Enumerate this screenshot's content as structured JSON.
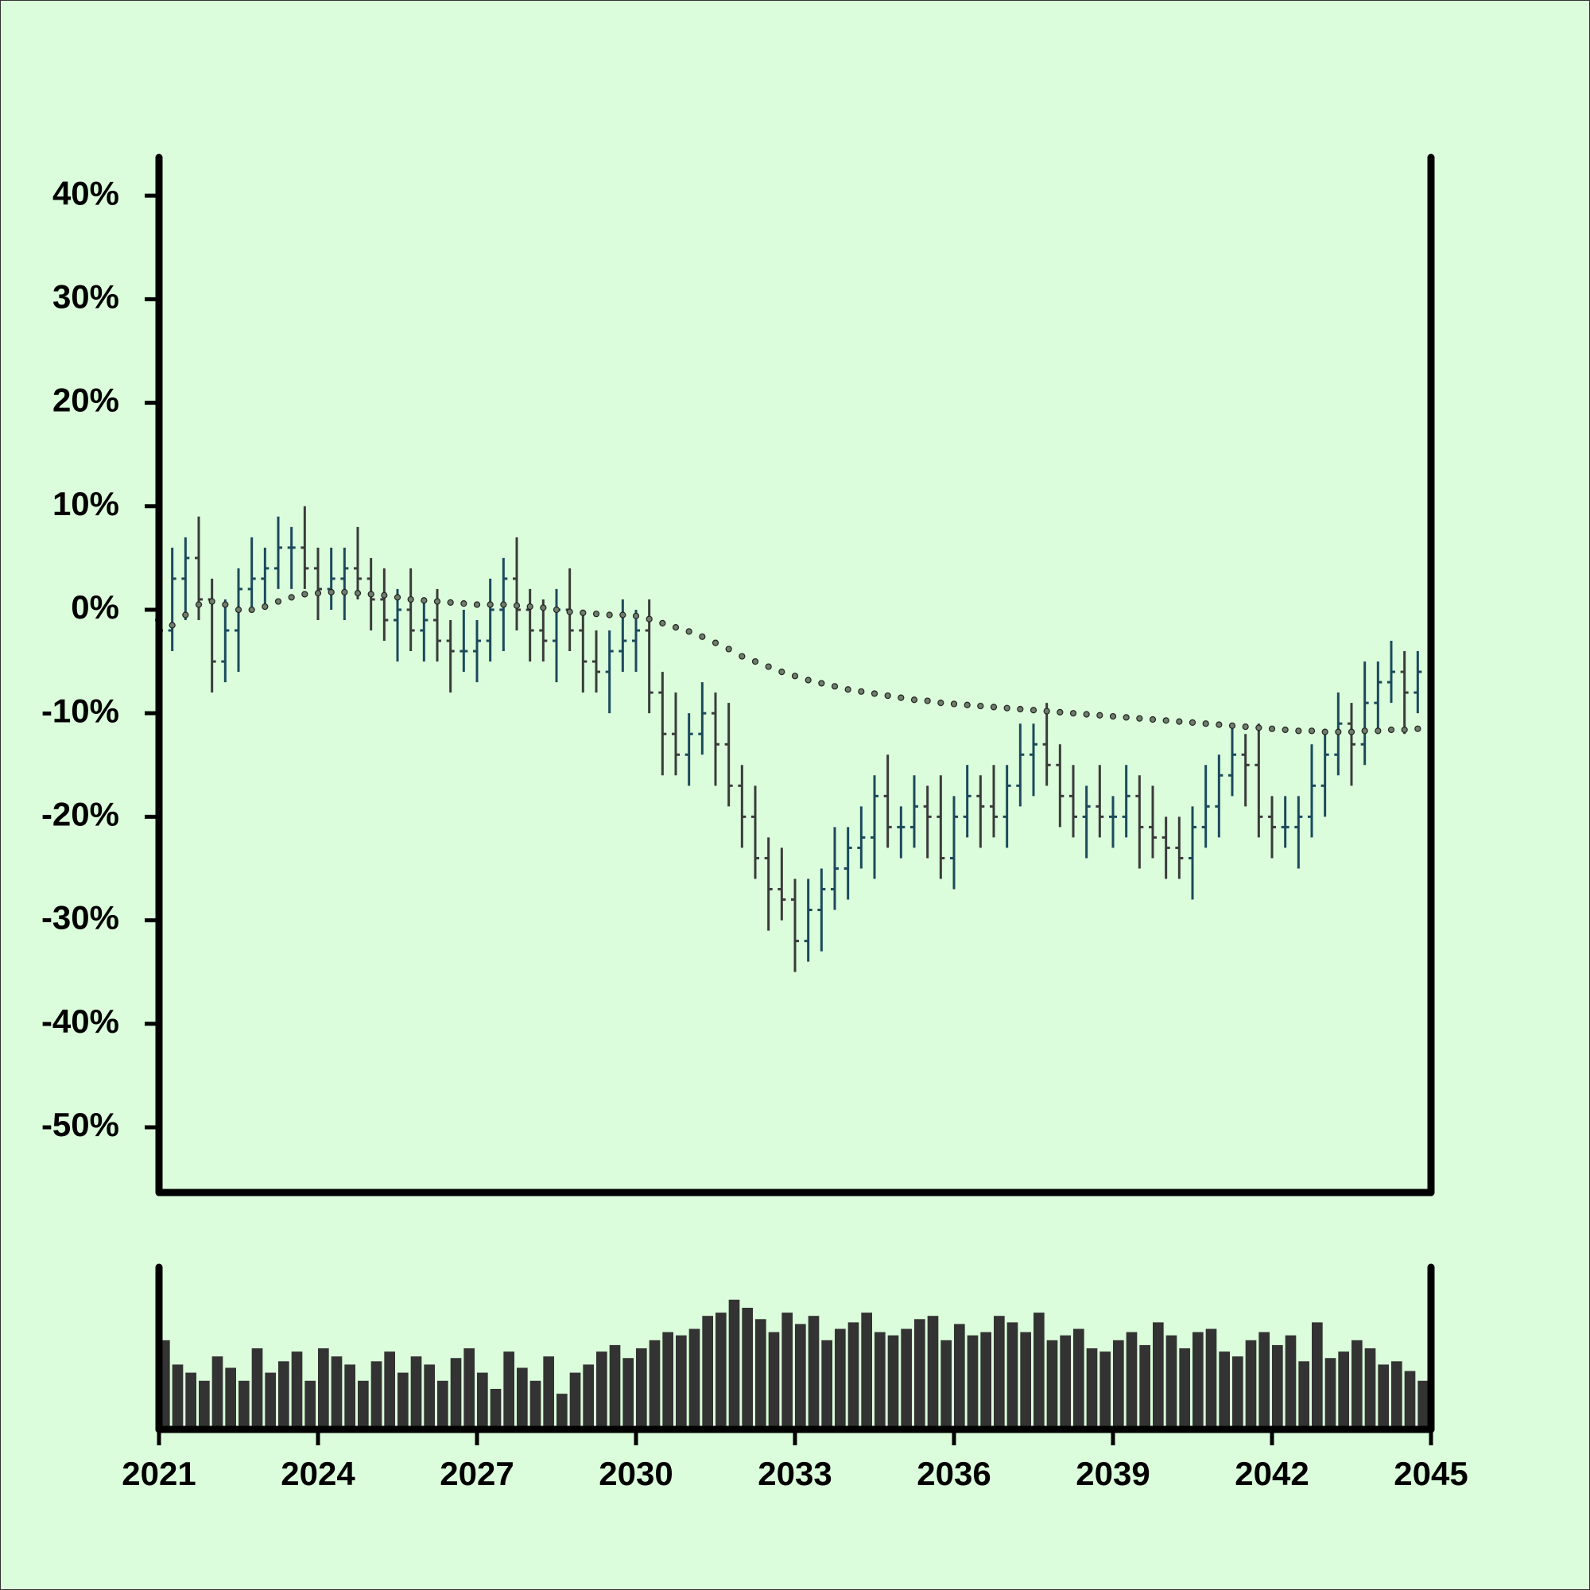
{
  "chart_data": {
    "type": "ohlc",
    "x": [
      2021,
      2021.25,
      2021.5,
      2021.75,
      2022,
      2022.25,
      2022.5,
      2022.75,
      2023,
      2023.25,
      2023.5,
      2023.75,
      2024,
      2024.25,
      2024.5,
      2024.75,
      2025,
      2025.25,
      2025.5,
      2025.75,
      2026,
      2026.25,
      2026.5,
      2026.75,
      2027,
      2027.25,
      2027.5,
      2027.75,
      2028,
      2028.25,
      2028.5,
      2028.75,
      2029,
      2029.25,
      2029.5,
      2029.75,
      2030,
      2030.25,
      2030.5,
      2030.75,
      2031,
      2031.25,
      2031.5,
      2031.75,
      2032,
      2032.25,
      2032.5,
      2032.75,
      2033,
      2033.25,
      2033.5,
      2033.75,
      2034,
      2034.25,
      2034.5,
      2034.75,
      2035,
      2035.25,
      2035.5,
      2035.75,
      2036,
      2036.25,
      2036.5,
      2036.75,
      2037,
      2037.25,
      2037.5,
      2037.75,
      2038,
      2038.25,
      2038.5,
      2038.75,
      2039,
      2039.25,
      2039.5,
      2039.75,
      2040,
      2040.25,
      2040.5,
      2040.75,
      2041,
      2041.25,
      2041.5,
      2041.75,
      2042,
      2042.25,
      2042.5,
      2042.75,
      2043,
      2043.25,
      2043.5,
      2043.75,
      2044,
      2044.25,
      2044.5,
      2044.75
    ],
    "open": [
      -1,
      -2,
      3,
      5,
      1,
      -5,
      -2,
      2,
      3,
      4,
      6,
      6,
      4,
      2,
      3,
      4,
      3,
      1,
      -1,
      0,
      -2,
      -1,
      -3,
      -4,
      -4,
      -3,
      0,
      3,
      0,
      -2,
      -3,
      0,
      -2,
      -5,
      -6,
      -4,
      -3,
      -2,
      -8,
      -12,
      -14,
      -12,
      -10,
      -13,
      -17,
      -20,
      -24,
      -27,
      -28,
      -32,
      -29,
      -27,
      -25,
      -23,
      -22,
      -18,
      -21,
      -21,
      -19,
      -20,
      -24,
      -20,
      -18,
      -19,
      -20,
      -17,
      -14,
      -13,
      -15,
      -18,
      -20,
      -19,
      -20,
      -20,
      -18,
      -21,
      -22,
      -23,
      -24,
      -21,
      -19,
      -16,
      -14,
      -15,
      -20,
      -21,
      -21,
      -20,
      -17,
      -14,
      -11,
      -13,
      -9,
      -7,
      -6,
      -8
    ],
    "high": [
      1,
      6,
      7,
      9,
      3,
      1,
      4,
      7,
      6,
      9,
      8,
      10,
      6,
      6,
      6,
      8,
      5,
      4,
      2,
      4,
      1,
      2,
      -1,
      0,
      -1,
      3,
      5,
      7,
      2,
      1,
      2,
      4,
      0,
      -2,
      -2,
      1,
      0,
      1,
      -6,
      -8,
      -10,
      -7,
      -8,
      -9,
      -15,
      -17,
      -22,
      -23,
      -26,
      -26,
      -25,
      -21,
      -21,
      -19,
      -16,
      -14,
      -19,
      -16,
      -17,
      -16,
      -18,
      -15,
      -16,
      -15,
      -15,
      -11,
      -11,
      -9,
      -13,
      -15,
      -17,
      -15,
      -18,
      -15,
      -16,
      -17,
      -20,
      -20,
      -19,
      -15,
      -14,
      -11,
      -12,
      -11,
      -18,
      -18,
      -18,
      -13,
      -12,
      -8,
      -9,
      -5,
      -5,
      -3,
      -4,
      -4
    ],
    "low": [
      -5,
      -4,
      -1,
      -1,
      -8,
      -7,
      -6,
      0,
      0,
      2,
      2,
      2,
      -1,
      0,
      -1,
      1,
      -2,
      -3,
      -5,
      -4,
      -5,
      -5,
      -8,
      -6,
      -7,
      -5,
      -4,
      -2,
      -5,
      -5,
      -7,
      -4,
      -8,
      -8,
      -10,
      -6,
      -6,
      -10,
      -16,
      -16,
      -17,
      -14,
      -17,
      -19,
      -23,
      -26,
      -31,
      -30,
      -35,
      -34,
      -33,
      -29,
      -28,
      -25,
      -26,
      -23,
      -24,
      -23,
      -24,
      -26,
      -27,
      -22,
      -23,
      -22,
      -23,
      -19,
      -18,
      -17,
      -21,
      -22,
      -24,
      -22,
      -23,
      -22,
      -25,
      -24,
      -26,
      -26,
      -28,
      -23,
      -22,
      -18,
      -19,
      -22,
      -24,
      -23,
      -25,
      -22,
      -20,
      -16,
      -17,
      -15,
      -12,
      -9,
      -12,
      -10
    ],
    "close": [
      -2,
      3,
      5,
      1,
      -5,
      -2,
      2,
      3,
      4,
      6,
      6,
      4,
      2,
      3,
      4,
      3,
      1,
      -1,
      0,
      -2,
      -1,
      -3,
      -4,
      -4,
      -3,
      0,
      3,
      0,
      -2,
      -3,
      0,
      -2,
      -5,
      -6,
      -4,
      -3,
      -2,
      -8,
      -12,
      -14,
      -12,
      -10,
      -13,
      -17,
      -20,
      -24,
      -27,
      -28,
      -32,
      -29,
      -27,
      -25,
      -23,
      -22,
      -18,
      -21,
      -21,
      -19,
      -20,
      -24,
      -20,
      -18,
      -19,
      -20,
      -17,
      -14,
      -13,
      -15,
      -18,
      -20,
      -19,
      -20,
      -20,
      -18,
      -21,
      -22,
      -23,
      -24,
      -21,
      -19,
      -16,
      -14,
      -15,
      -20,
      -21,
      -21,
      -20,
      -17,
      -14,
      -11,
      -13,
      -9,
      -7,
      -6,
      -8,
      -6
    ],
    "up_color": "#1b4a5c",
    "down_color": "#3b3b3b",
    "ma": {
      "color": "#6f7d6c",
      "values": [
        -2,
        -1.5,
        -0.5,
        0.5,
        0.8,
        0.5,
        0,
        0,
        0.3,
        0.8,
        1.2,
        1.5,
        1.6,
        1.7,
        1.7,
        1.6,
        1.5,
        1.4,
        1.2,
        1,
        0.9,
        0.8,
        0.7,
        0.6,
        0.5,
        0.5,
        0.5,
        0.4,
        0.3,
        0.2,
        0,
        -0.2,
        -0.3,
        -0.4,
        -0.5,
        -0.5,
        -0.6,
        -0.9,
        -1.3,
        -1.7,
        -2.1,
        -2.6,
        -3.2,
        -3.8,
        -4.5,
        -5,
        -5.5,
        -6,
        -6.4,
        -6.8,
        -7.1,
        -7.4,
        -7.7,
        -7.9,
        -8.1,
        -8.3,
        -8.5,
        -8.7,
        -8.8,
        -9,
        -9.1,
        -9.2,
        -9.3,
        -9.4,
        -9.5,
        -9.6,
        -9.7,
        -9.8,
        -9.9,
        -10,
        -10.1,
        -10.2,
        -10.3,
        -10.4,
        -10.5,
        -10.6,
        -10.7,
        -10.8,
        -10.9,
        -11,
        -11.1,
        -11.2,
        -11.3,
        -11.4,
        -11.5,
        -11.6,
        -11.7,
        -11.7,
        -11.8,
        -11.8,
        -11.8,
        -11.7,
        -11.7,
        -11.6,
        -11.6,
        -11.5
      ]
    },
    "volume": {
      "color": "#333333",
      "ylim": [
        0,
        100
      ],
      "values": [
        55,
        40,
        35,
        30,
        45,
        38,
        30,
        50,
        35,
        42,
        48,
        30,
        50,
        45,
        40,
        30,
        42,
        48,
        35,
        45,
        40,
        30,
        44,
        50,
        35,
        25,
        48,
        38,
        30,
        45,
        22,
        35,
        40,
        48,
        52,
        44,
        50,
        55,
        60,
        58,
        62,
        70,
        72,
        80,
        75,
        68,
        60,
        72,
        65,
        70,
        55,
        62,
        66,
        72,
        60,
        58,
        62,
        68,
        70,
        55,
        65,
        58,
        60,
        70,
        66,
        60,
        72,
        55,
        58,
        62,
        50,
        48,
        55,
        60,
        52,
        66,
        58,
        50,
        60,
        62,
        48,
        45,
        55,
        60,
        52,
        58,
        42,
        66,
        44,
        48,
        55,
        50,
        40,
        42,
        36,
        30
      ]
    },
    "xlim": [
      2021,
      2045
    ],
    "xticks": [
      2021,
      2024,
      2027,
      2030,
      2033,
      2036,
      2039,
      2042,
      2045
    ],
    "ylim": [
      -56.3,
      43.7
    ],
    "yticks": [
      {
        "value": 40,
        "label": "40%"
      },
      {
        "value": 30,
        "label": "30%"
      },
      {
        "value": 20,
        "label": "20%"
      },
      {
        "value": 10,
        "label": "10%"
      },
      {
        "value": 0,
        "label": "0%"
      },
      {
        "value": -10,
        "label": "-10%"
      },
      {
        "value": -20,
        "label": "-20%"
      },
      {
        "value": -30,
        "label": "-30%"
      },
      {
        "value": -40,
        "label": "-40%"
      },
      {
        "value": -50,
        "label": "-50%"
      }
    ]
  }
}
